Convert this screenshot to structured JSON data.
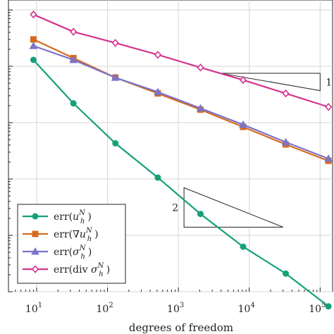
{
  "chart_data": {
    "type": "line",
    "xlabel": "degrees of freedom",
    "ylabel": "",
    "x_scale": "log",
    "y_scale": "log",
    "xlim": [
      4,
      150000
    ],
    "ylim": [
      1e-05,
      1.5
    ],
    "grid": true,
    "legend_position": "bottom-left",
    "x_ticks": [
      {
        "value": 10,
        "base": "10",
        "exp": "1"
      },
      {
        "value": 100,
        "base": "10",
        "exp": "2"
      },
      {
        "value": 1000,
        "base": "10",
        "exp": "3"
      },
      {
        "value": 10000,
        "base": "10",
        "exp": "4"
      },
      {
        "value": 100000,
        "base": "10",
        "exp": "5"
      }
    ],
    "x": [
      9,
      33,
      129,
      513,
      2049,
      8193,
      32769,
      131073
    ],
    "series": [
      {
        "name": "err(u_h^N)",
        "label": {
          "fn": "err(",
          "sym": "u",
          "sub": "h",
          "sup": "N",
          "close": ")"
        },
        "color": "#15a07a",
        "marker": "circle",
        "values": [
          0.13,
          0.022,
          0.0043,
          0.00106,
          0.00024,
          6.3e-05,
          2.1e-05,
          5.5e-06
        ]
      },
      {
        "name": "err(∇u_h^N)",
        "label": {
          "fn": "err(∇",
          "sym": "u",
          "sub": "h",
          "sup": "N",
          "close": ")"
        },
        "color": "#d86a1e",
        "marker": "square",
        "values": [
          0.3,
          0.14,
          0.063,
          0.033,
          0.017,
          0.0084,
          0.0041,
          0.0021
        ]
      },
      {
        "name": "err(σ_h^N)",
        "label": {
          "fn": "err(",
          "sym": "σ",
          "sub": "h",
          "sup": "N",
          "close": ")"
        },
        "color": "#7a74c8",
        "marker": "triangle",
        "values": [
          0.23,
          0.13,
          0.063,
          0.035,
          0.018,
          0.0092,
          0.0045,
          0.0023
        ]
      },
      {
        "name": "err(div σ_h^N)",
        "label": {
          "fn": "err(div ",
          "sym": "σ",
          "sub": "h",
          "sup": "N",
          "close": ")"
        },
        "color": "#d6338f",
        "marker": "diamond",
        "values": [
          0.83,
          0.41,
          0.26,
          0.16,
          0.095,
          0.057,
          0.033,
          0.019
        ]
      }
    ],
    "annotations": [
      {
        "type": "slope-triangle",
        "label": "1",
        "x_start": 4000,
        "x_end": 100000,
        "y_top": 0.075,
        "y_bottom": 0.037
      },
      {
        "type": "slope-triangle",
        "label": "2",
        "x_start": 1200,
        "x_end": 30000,
        "y_top": 0.0007,
        "y_bottom": 0.00014
      }
    ]
  }
}
